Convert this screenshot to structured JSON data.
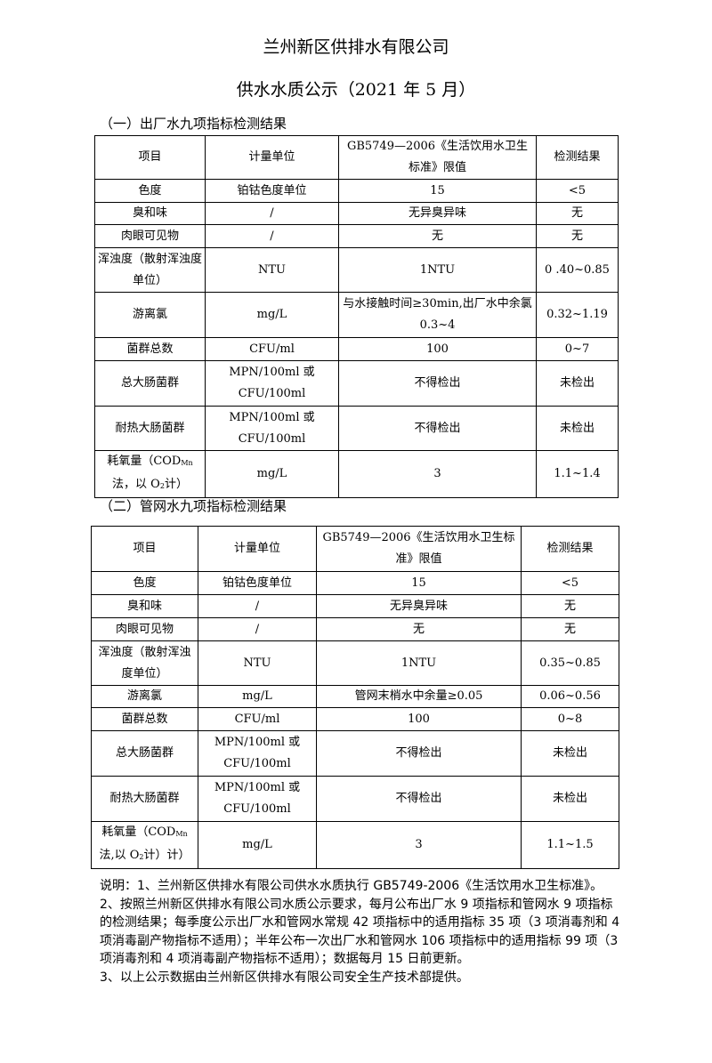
{
  "title": "兰州新区供排水有限公司",
  "subtitle": "供水水质公示（2021 年 5 月）",
  "headers": [
    "项目",
    "计量单位",
    "GB5749—2006《生活饮用水卫生标准》限值",
    "检测结果"
  ],
  "section1": {
    "heading": "（一）出厂水九项指标检测结果",
    "rows": [
      [
        "色度",
        "铂钴色度单位",
        "15",
        "<5"
      ],
      [
        "臭和味",
        "/",
        "无异臭异味",
        "无"
      ],
      [
        "肉眼可见物",
        "/",
        "无",
        "无"
      ],
      [
        "浑浊度（散射浑浊度单位）",
        "NTU",
        "1NTU",
        "0 .40~0.85"
      ],
      [
        "游离氯",
        "mg/L",
        "与水接触时间≥30min,出厂水中余氯 0.3~4",
        "0.32~1.19"
      ],
      [
        "菌群总数",
        "CFU/ml",
        "100",
        "0~7"
      ],
      [
        "总大肠菌群",
        "MPN/100ml 或 CFU/100ml",
        "不得检出",
        "未检出"
      ],
      [
        "耐热大肠菌群",
        "MPN/100ml 或 CFU/100ml",
        "不得检出",
        "未检出"
      ],
      [
        "耗氧量（CODMn法，以 O2计）",
        "mg/L",
        "3",
        "1.1~1.4"
      ]
    ]
  },
  "section2": {
    "heading": "（二）管网水九项指标检测结果",
    "rows": [
      [
        "色度",
        "铂钴色度单位",
        "15",
        "<5"
      ],
      [
        "臭和味",
        "/",
        "无异臭异味",
        "无"
      ],
      [
        "肉眼可见物",
        "/",
        "无",
        "无"
      ],
      [
        "浑浊度（散射浑浊度单位）",
        "NTU",
        "1NTU",
        "0.35~0.85"
      ],
      [
        "游离氯",
        "mg/L",
        "管网末梢水中余量≥0.05",
        "0.06~0.56"
      ],
      [
        "菌群总数",
        "CFU/ml",
        "100",
        "0~8"
      ],
      [
        "总大肠菌群",
        "MPN/100ml 或 CFU/100ml",
        "不得检出",
        "未检出"
      ],
      [
        "耐热大肠菌群",
        "MPN/100ml 或 CFU/100ml",
        "不得检出",
        "未检出"
      ],
      [
        "耗氧量（CODMn法,以 O2计）计）",
        "mg/L",
        "3",
        "1.1~1.5"
      ]
    ]
  },
  "notes": [
    "说明：1、兰州新区供排水有限公司供水水质执行 GB5749-2006《生活饮用水卫生标准》。",
    "2、按照兰州新区供排水有限公司水质公示要求，每月公布出厂水 9 项指标和管网水 9 项指标的检测结果；每季度公示出厂水和管网水常规 42 项指标中的适用指标 35 项（3 项消毒剂和 4 项消毒副产物指标不适用）；半年公布一次出厂水和管网水 106 项指标中的适用指标 99 项（3 项消毒剂和 4 项消毒副产物指标不适用）；数据每月 15 日前更新。",
    "3、以上公示数据由兰州新区供排水有限公司安全生产技术部提供。"
  ]
}
